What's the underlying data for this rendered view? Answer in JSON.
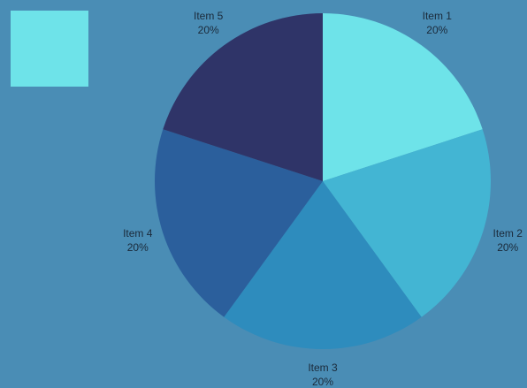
{
  "chart_data": {
    "type": "pie",
    "categories": [
      "Item 1",
      "Item 2",
      "Item 3",
      "Item 4",
      "Item 5"
    ],
    "values": [
      20,
      20,
      20,
      20,
      20
    ],
    "value_labels": [
      "20%",
      "20%",
      "20%",
      "20%",
      "20%"
    ],
    "colors": [
      "#6ee3e9",
      "#43b5d3",
      "#2e8cbd",
      "#2b5f9c",
      "#2f3468"
    ]
  }
}
